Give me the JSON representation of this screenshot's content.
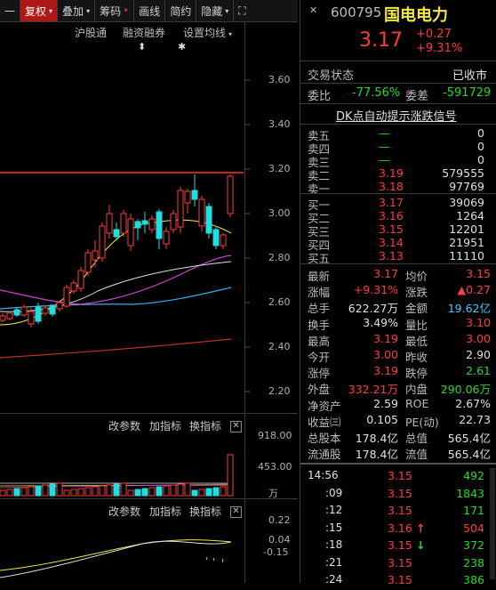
{
  "toolbar": {
    "items": [
      {
        "label": "一"
      },
      {
        "label": "复权",
        "caret": "▾"
      },
      {
        "label": "叠加",
        "caret": "▾"
      },
      {
        "label": "筹码",
        "dot": "•"
      },
      {
        "label": "画线"
      },
      {
        "label": "简约"
      },
      {
        "label": "隐藏",
        "caret": "▾"
      },
      {
        "label": "⛶"
      }
    ]
  },
  "chart_top": {
    "labels": [
      "沪股通",
      "融资融券",
      "设置均线"
    ],
    "caret": "▾",
    "markers": [
      "⬍",
      "✱"
    ]
  },
  "price_axis": [
    "3.60",
    "3.40",
    "3.20",
    "3.00",
    "2.80",
    "2.60",
    "2.40",
    "2.20"
  ],
  "volume_pane": {
    "buttons": [
      "改参数",
      "加指标",
      "换指标"
    ],
    "close": "✕",
    "ticks": [
      "918.00",
      "453.00",
      "万"
    ]
  },
  "macd_pane": {
    "buttons": [
      "改参数",
      "加指标",
      "换指标"
    ],
    "close": "✕",
    "ticks": [
      "0.22",
      "0.04",
      "-0.15"
    ]
  },
  "colors": {
    "up": "#ff3c3c",
    "down": "#22dddd",
    "ma5": "#e0e0e0",
    "ma10": "#f2e640",
    "ma20": "#d040d0",
    "ma60": "#38b0e0",
    "ma120": "#c03030"
  },
  "stock": {
    "code": "600795",
    "name": "国电电力",
    "price": "3.17",
    "change": "+0.27",
    "change_pct": "+9.31%"
  },
  "status": {
    "label": "交易状态",
    "value": "已收市"
  },
  "weibi": {
    "l1": "委比",
    "v1": "-77.56%",
    "l2": "委差",
    "v2": "-591729"
  },
  "dk_banner": "DK点自动提示涨跌信号",
  "asks": [
    {
      "label": "卖五",
      "price": "—",
      "vol": "0"
    },
    {
      "label": "卖四",
      "price": "—",
      "vol": "0"
    },
    {
      "label": "卖三",
      "price": "—",
      "vol": "0"
    },
    {
      "label": "卖二",
      "price": "3.19",
      "vol": "579555"
    },
    {
      "label": "卖一",
      "price": "3.18",
      "vol": "97769"
    }
  ],
  "bids": [
    {
      "label": "买一",
      "price": "3.17",
      "vol": "39069"
    },
    {
      "label": "买二",
      "price": "3.16",
      "vol": "1264"
    },
    {
      "label": "买三",
      "price": "3.15",
      "vol": "12201"
    },
    {
      "label": "买四",
      "price": "3.14",
      "vol": "21951"
    },
    {
      "label": "买五",
      "price": "3.13",
      "vol": "11110"
    }
  ],
  "quote": [
    {
      "l1": "最新",
      "v1": "3.17",
      "c1": "red",
      "l2": "均价",
      "v2": "3.15",
      "c2": "red"
    },
    {
      "l1": "涨幅",
      "v1": "+9.31%",
      "c1": "red",
      "l2": "涨跌",
      "v2": "▲0.27",
      "c2": "red"
    },
    {
      "l1": "总手",
      "v1": "622.27万",
      "c1": "white",
      "l2": "金额",
      "v2": "19.62亿",
      "c2": "cyan"
    },
    {
      "l1": "换手",
      "v1": "3.49%",
      "c1": "white",
      "l2": "量比",
      "v2": "3.10",
      "c2": "red"
    },
    {
      "l1": "最高",
      "v1": "3.19",
      "c1": "red",
      "l2": "最低",
      "v2": "3.00",
      "c2": "red"
    },
    {
      "l1": "今开",
      "v1": "3.00",
      "c1": "red",
      "l2": "昨收",
      "v2": "2.90",
      "c2": "white"
    },
    {
      "l1": "涨停",
      "v1": "3.19",
      "c1": "red",
      "l2": "跌停",
      "v2": "2.61",
      "c2": "green"
    },
    {
      "l1": "外盘",
      "v1": "332.21万",
      "c1": "red",
      "l2": "内盘",
      "v2": "290.06万",
      "c2": "green"
    },
    {
      "l1": "净资产",
      "v1": "2.59",
      "c1": "white",
      "l2": "ROE",
      "v2": "2.67%",
      "c2": "white"
    },
    {
      "l1": "收益㈢",
      "v1": "0.105",
      "c1": "white",
      "l2": "PE(动)",
      "v2": "22.73",
      "c2": "white"
    },
    {
      "l1": "总股本",
      "v1": "178.4亿",
      "c1": "white",
      "l2": "总值",
      "v2": "565.4亿",
      "c2": "white"
    },
    {
      "l1": "流通股",
      "v1": "178.4亿",
      "c1": "white",
      "l2": "流值",
      "v2": "565.4亿",
      "c2": "white"
    }
  ],
  "ticks": [
    {
      "time": "14:56",
      "price": "3.15",
      "arrow": "",
      "vol": "492",
      "vc": "green"
    },
    {
      "time": ":09",
      "price": "3.15",
      "arrow": "",
      "vol": "1843",
      "vc": "green"
    },
    {
      "time": ":12",
      "price": "3.15",
      "arrow": "",
      "vol": "171",
      "vc": "green"
    },
    {
      "time": ":15",
      "price": "3.16",
      "arrow": "↑",
      "vol": "504",
      "vc": "red"
    },
    {
      "time": ":18",
      "price": "3.15",
      "arrow": "↓",
      "vol": "372",
      "vc": "green"
    },
    {
      "time": ":21",
      "price": "3.15",
      "arrow": "",
      "vol": "238",
      "vc": "green"
    },
    {
      "time": ":24",
      "price": "3.15",
      "arrow": "",
      "vol": "386",
      "vc": "green"
    }
  ]
}
